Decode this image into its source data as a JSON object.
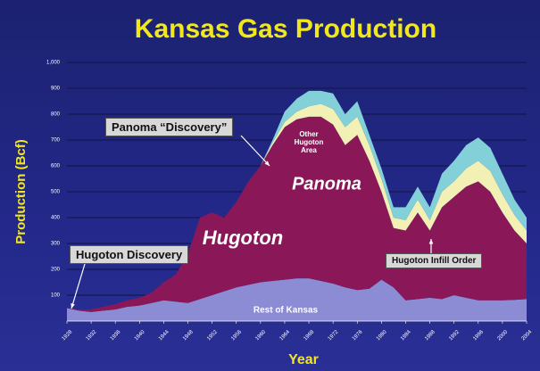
{
  "chart_data": {
    "type": "stacked_area",
    "title": "Kansas Gas Production",
    "y_label": "Production (Bcf)",
    "x_label": "Year",
    "x": [
      1928,
      1930,
      1932,
      1934,
      1936,
      1938,
      1940,
      1942,
      1944,
      1946,
      1948,
      1950,
      1952,
      1954,
      1956,
      1958,
      1960,
      1962,
      1964,
      1966,
      1968,
      1970,
      1972,
      1974,
      1976,
      1978,
      1980,
      1982,
      1984,
      1986,
      1988,
      1990,
      1992,
      1994,
      1996,
      1998,
      2000,
      2002,
      2004
    ],
    "series": [
      {
        "name": "Rest of Kansas",
        "color": "#8c8cd4",
        "values": [
          50,
          40,
          35,
          40,
          45,
          55,
          60,
          70,
          80,
          75,
          70,
          85,
          100,
          115,
          130,
          140,
          150,
          155,
          160,
          165,
          165,
          155,
          145,
          130,
          120,
          125,
          160,
          130,
          80,
          85,
          90,
          85,
          100,
          90,
          80,
          80,
          80,
          82,
          85
        ]
      },
      {
        "name": "Hugoton",
        "color": "#8a1858",
        "values": [
          0,
          5,
          10,
          15,
          20,
          25,
          30,
          40,
          70,
          105,
          190,
          315,
          320,
          285,
          330,
          400,
          450,
          525,
          590,
          615,
          625,
          635,
          615,
          550,
          600,
          495,
          340,
          230,
          270,
          335,
          260,
          355,
          380,
          430,
          460,
          420,
          340,
          268,
          215
        ]
      },
      {
        "name": "Panoma",
        "color": "#f2f0b4",
        "values": [
          0,
          0,
          0,
          0,
          0,
          0,
          0,
          0,
          0,
          0,
          0,
          0,
          0,
          0,
          0,
          0,
          0,
          10,
          20,
          30,
          40,
          50,
          60,
          70,
          70,
          60,
          50,
          40,
          40,
          50,
          40,
          60,
          60,
          70,
          80,
          80,
          70,
          60,
          50
        ]
      },
      {
        "name": "Other Hugoton Area",
        "color": "#84d0d8",
        "values": [
          0,
          0,
          0,
          0,
          0,
          0,
          0,
          0,
          0,
          0,
          0,
          0,
          0,
          0,
          0,
          0,
          0,
          10,
          40,
          50,
          60,
          50,
          60,
          50,
          60,
          40,
          40,
          40,
          50,
          50,
          50,
          70,
          80,
          90,
          90,
          90,
          80,
          60,
          50
        ]
      }
    ],
    "xlim": [
      1928,
      2004
    ],
    "xticks": [
      1928,
      1932,
      1936,
      1940,
      1944,
      1948,
      1952,
      1956,
      1960,
      1964,
      1968,
      1972,
      1976,
      1980,
      1984,
      1988,
      1992,
      1996,
      2000,
      2004
    ],
    "ylim": [
      0,
      1000
    ],
    "yticks": [
      100,
      200,
      300,
      400,
      500,
      600,
      700,
      800,
      900,
      {
        "value": 1000,
        "label": "1,000"
      }
    ],
    "grid": true,
    "annotations": [
      {
        "text": "Panoma “Discovery”"
      },
      {
        "text": "Hugoton Discovery"
      },
      {
        "text": "Hugoton Infill Order"
      }
    ]
  }
}
